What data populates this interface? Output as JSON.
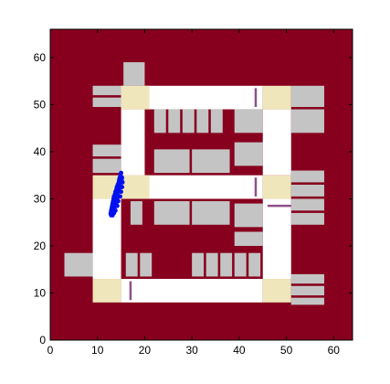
{
  "chart_data": {
    "type": "scatter",
    "xlim": [
      0,
      64
    ],
    "ylim": [
      0,
      66
    ],
    "x_ticks": [
      0,
      10,
      20,
      30,
      40,
      50,
      60
    ],
    "y_ticks": [
      0,
      10,
      20,
      30,
      40,
      50,
      60
    ],
    "x_tick_labels": [
      "0",
      "10",
      "20",
      "30",
      "40",
      "50",
      "60"
    ],
    "y_tick_labels": [
      "0",
      "10",
      "20",
      "30",
      "40",
      "50",
      "60"
    ],
    "grid": false,
    "colors": {
      "background": "#87001e",
      "road": "#ffffff",
      "building": "#c4c4c4",
      "intersection": "#efe6bb",
      "barrier": "#8e4f8a",
      "points": "#0010ee"
    },
    "roads": [
      {
        "x0": 15,
        "y0": 49,
        "x1": 45,
        "y1": 54
      },
      {
        "x0": 15,
        "y0": 30,
        "x1": 45,
        "y1": 35
      },
      {
        "x0": 15,
        "y0": 8,
        "x1": 45,
        "y1": 13
      },
      {
        "x0": 15,
        "y0": 35,
        "x1": 20,
        "y1": 49
      },
      {
        "x0": 45,
        "y0": 35,
        "x1": 51,
        "y1": 49
      },
      {
        "x0": 9,
        "y0": 13,
        "x1": 15,
        "y1": 30
      },
      {
        "x0": 45,
        "y0": 13,
        "x1": 51,
        "y1": 30
      }
    ],
    "intersections": [
      {
        "x0": 15,
        "y0": 49,
        "x1": 21,
        "y1": 54
      },
      {
        "x0": 45,
        "y0": 49,
        "x1": 51,
        "y1": 54
      },
      {
        "x0": 9,
        "y0": 30,
        "x1": 15,
        "y1": 35
      },
      {
        "x0": 15,
        "y0": 30,
        "x1": 21,
        "y1": 35
      },
      {
        "x0": 45,
        "y0": 30,
        "x1": 51,
        "y1": 35
      },
      {
        "x0": 9,
        "y0": 8,
        "x1": 15,
        "y1": 13
      },
      {
        "x0": 45,
        "y0": 8,
        "x1": 51,
        "y1": 13
      }
    ],
    "buildings": [
      {
        "x0": 15.5,
        "y0": 54,
        "x1": 20,
        "y1": 59
      },
      {
        "x0": 9,
        "y0": 52,
        "x1": 15,
        "y1": 54
      },
      {
        "x0": 9,
        "y0": 49.5,
        "x1": 15,
        "y1": 51.5
      },
      {
        "x0": 51,
        "y0": 49.5,
        "x1": 58,
        "y1": 54
      },
      {
        "x0": 51,
        "y0": 44,
        "x1": 58,
        "y1": 49
      },
      {
        "x0": 22,
        "y0": 44,
        "x1": 24.5,
        "y1": 49
      },
      {
        "x0": 25,
        "y0": 44,
        "x1": 27.5,
        "y1": 49
      },
      {
        "x0": 28,
        "y0": 44,
        "x1": 30.5,
        "y1": 49
      },
      {
        "x0": 31,
        "y0": 44,
        "x1": 33.5,
        "y1": 49
      },
      {
        "x0": 34,
        "y0": 44,
        "x1": 36.5,
        "y1": 49
      },
      {
        "x0": 39,
        "y0": 44,
        "x1": 45,
        "y1": 49
      },
      {
        "x0": 39,
        "y0": 37,
        "x1": 45,
        "y1": 42
      },
      {
        "x0": 22,
        "y0": 35.5,
        "x1": 29.5,
        "y1": 40.5
      },
      {
        "x0": 30,
        "y0": 35.5,
        "x1": 38,
        "y1": 40.5
      },
      {
        "x0": 9,
        "y0": 39,
        "x1": 15,
        "y1": 41.5
      },
      {
        "x0": 9,
        "y0": 35.5,
        "x1": 15,
        "y1": 38.5
      },
      {
        "x0": 51,
        "y0": 33.5,
        "x1": 58,
        "y1": 36
      },
      {
        "x0": 51,
        "y0": 30.5,
        "x1": 58,
        "y1": 33
      },
      {
        "x0": 51,
        "y0": 27.5,
        "x1": 58,
        "y1": 30
      },
      {
        "x0": 51,
        "y0": 24.5,
        "x1": 58,
        "y1": 27
      },
      {
        "x0": 22,
        "y0": 24.5,
        "x1": 29.5,
        "y1": 29.5
      },
      {
        "x0": 30,
        "y0": 24.5,
        "x1": 38,
        "y1": 29.5
      },
      {
        "x0": 17,
        "y0": 24.5,
        "x1": 19.5,
        "y1": 29.5
      },
      {
        "x0": 39,
        "y0": 24,
        "x1": 45,
        "y1": 29
      },
      {
        "x0": 39,
        "y0": 20,
        "x1": 45,
        "y1": 23
      },
      {
        "x0": 3,
        "y0": 13.5,
        "x1": 9,
        "y1": 18.5
      },
      {
        "x0": 16,
        "y0": 13.5,
        "x1": 18.5,
        "y1": 18.5
      },
      {
        "x0": 19,
        "y0": 13.5,
        "x1": 21.5,
        "y1": 18.5
      },
      {
        "x0": 30,
        "y0": 13.5,
        "x1": 32.5,
        "y1": 18.5
      },
      {
        "x0": 33,
        "y0": 13.5,
        "x1": 35.5,
        "y1": 18.5
      },
      {
        "x0": 36,
        "y0": 13.5,
        "x1": 38.5,
        "y1": 18.5
      },
      {
        "x0": 39,
        "y0": 13.5,
        "x1": 41.5,
        "y1": 18.5
      },
      {
        "x0": 42,
        "y0": 13.5,
        "x1": 44.5,
        "y1": 18.5
      },
      {
        "x0": 51,
        "y0": 12,
        "x1": 58,
        "y1": 14
      },
      {
        "x0": 51,
        "y0": 9.5,
        "x1": 58,
        "y1": 11.5
      },
      {
        "x0": 51,
        "y0": 7.5,
        "x1": 58,
        "y1": 9
      }
    ],
    "barriers": [
      {
        "x0": 43.5,
        "y0": 49.5,
        "x1": 43.5,
        "y1": 53.5
      },
      {
        "x0": 43.5,
        "y0": 30.5,
        "x1": 43.5,
        "y1": 34.5
      },
      {
        "x0": 46,
        "y0": 28.5,
        "x1": 51,
        "y1": 28.5
      },
      {
        "x0": 17,
        "y0": 8.5,
        "x1": 17,
        "y1": 12.5
      }
    ],
    "series": [
      {
        "points": [
          [
            15,
            35.5
          ],
          [
            14.9,
            35
          ],
          [
            14.7,
            34.5
          ],
          [
            14.6,
            34
          ],
          [
            14.5,
            33.5
          ],
          [
            14.3,
            33
          ],
          [
            14.1,
            32.5
          ],
          [
            14,
            32
          ],
          [
            13.8,
            31.5
          ],
          [
            13.7,
            31
          ],
          [
            13.5,
            30.5
          ],
          [
            13.4,
            30
          ],
          [
            13.3,
            29.5
          ],
          [
            13.2,
            29
          ],
          [
            13.1,
            28.5
          ],
          [
            13,
            28
          ],
          [
            12.9,
            27.5
          ],
          [
            12.8,
            27
          ],
          [
            12.9,
            26.5
          ],
          [
            13.2,
            26.5
          ],
          [
            13.5,
            27
          ],
          [
            13.8,
            27.5
          ],
          [
            14.2,
            28.5
          ],
          [
            14.4,
            29.5
          ],
          [
            14.8,
            30.5
          ],
          [
            15,
            31.5
          ],
          [
            15.2,
            32.5
          ],
          [
            15.3,
            33.5
          ],
          [
            15.2,
            34.5
          ],
          [
            14.2,
            31
          ],
          [
            13.9,
            30
          ],
          [
            13.6,
            29
          ],
          [
            13.4,
            28
          ],
          [
            13.7,
            28.5
          ],
          [
            14.5,
            31.5
          ],
          [
            14.8,
            32.5
          ],
          [
            14.7,
            33
          ],
          [
            15.1,
            34
          ],
          [
            13.3,
            27
          ],
          [
            13.6,
            27.8
          ],
          [
            14,
            29.2
          ],
          [
            14.3,
            30.3
          ],
          [
            14.6,
            32.2
          ],
          [
            12.8,
            26.8
          ],
          [
            13.1,
            27.6
          ],
          [
            14.9,
            33.6
          ]
        ]
      }
    ]
  }
}
